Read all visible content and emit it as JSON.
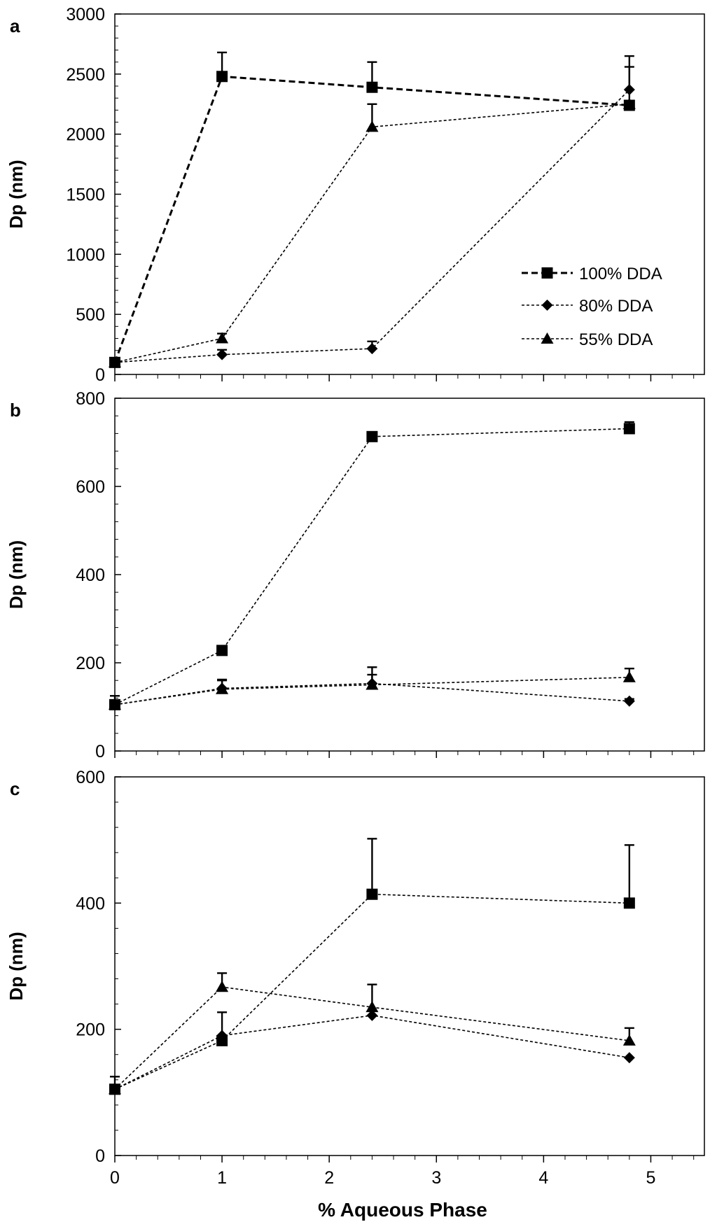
{
  "chart_data": [
    {
      "panel": "a",
      "type": "line",
      "ylabel": "Dp (nm)",
      "ylim": [
        0,
        3000
      ],
      "yticks": [
        0,
        500,
        1000,
        1500,
        2000,
        2500,
        3000
      ],
      "xlim": [
        0,
        5.5
      ],
      "show_legend": true,
      "series": [
        {
          "name": "100% DDA",
          "marker": "square",
          "style": "bold-dashed",
          "x": [
            0,
            1,
            2.4,
            4.8
          ],
          "y": [
            100,
            2480,
            2390,
            2240
          ],
          "err": [
            20,
            200,
            210,
            0
          ]
        },
        {
          "name": "80% DDA",
          "marker": "diamond",
          "style": "dotted",
          "x": [
            0,
            1,
            2.4,
            4.8
          ],
          "y": [
            100,
            165,
            215,
            2370
          ],
          "err": [
            0,
            40,
            60,
            280
          ]
        },
        {
          "name": "55% DDA",
          "marker": "triangle",
          "style": "dotted",
          "x": [
            0,
            1,
            2.4,
            4.8
          ],
          "y": [
            100,
            300,
            2060,
            2250
          ],
          "err": [
            0,
            40,
            190,
            310
          ]
        }
      ]
    },
    {
      "panel": "b",
      "type": "line",
      "ylabel": "Dp (nm)",
      "ylim": [
        0,
        800
      ],
      "yticks": [
        0,
        200,
        400,
        600,
        800
      ],
      "xlim": [
        0,
        5.5
      ],
      "show_legend": false,
      "series": [
        {
          "name": "100% DDA",
          "marker": "square",
          "style": "dotted",
          "x": [
            0,
            1,
            2.4,
            4.8
          ],
          "y": [
            105,
            228,
            713,
            731
          ],
          "err": [
            20,
            10,
            10,
            15
          ]
        },
        {
          "name": "80% DDA",
          "marker": "diamond",
          "style": "dotted",
          "x": [
            0,
            1,
            2.4,
            4.8
          ],
          "y": [
            105,
            142,
            153,
            113
          ],
          "err": [
            0,
            20,
            20,
            5
          ]
        },
        {
          "name": "55% DDA",
          "marker": "triangle",
          "style": "dotted",
          "x": [
            0,
            1,
            2.4,
            4.8
          ],
          "y": [
            105,
            140,
            150,
            167
          ],
          "err": [
            0,
            20,
            40,
            20
          ]
        }
      ]
    },
    {
      "panel": "c",
      "type": "line",
      "ylabel": "Dp (nm)",
      "ylim": [
        0,
        600
      ],
      "yticks": [
        0,
        200,
        400,
        600
      ],
      "xlim": [
        0,
        5.5
      ],
      "xticks": [
        0,
        1,
        2,
        3,
        4,
        5
      ],
      "xlabel": "% Aqueous Phase",
      "show_legend": false,
      "series": [
        {
          "name": "100% DDA",
          "marker": "square",
          "style": "dotted",
          "x": [
            0,
            1,
            2.4,
            4.8
          ],
          "y": [
            105,
            182,
            414,
            400
          ],
          "err": [
            20,
            45,
            88,
            92
          ]
        },
        {
          "name": "80% DDA",
          "marker": "diamond",
          "style": "dotted",
          "x": [
            0,
            1,
            2.4,
            4.8
          ],
          "y": [
            105,
            190,
            222,
            155
          ],
          "err": [
            0,
            0,
            0,
            0
          ]
        },
        {
          "name": "55% DDA",
          "marker": "triangle",
          "style": "dotted",
          "x": [
            0,
            1,
            2.4,
            4.8
          ],
          "y": [
            105,
            267,
            235,
            182
          ],
          "err": [
            0,
            22,
            36,
            20
          ]
        }
      ]
    }
  ]
}
